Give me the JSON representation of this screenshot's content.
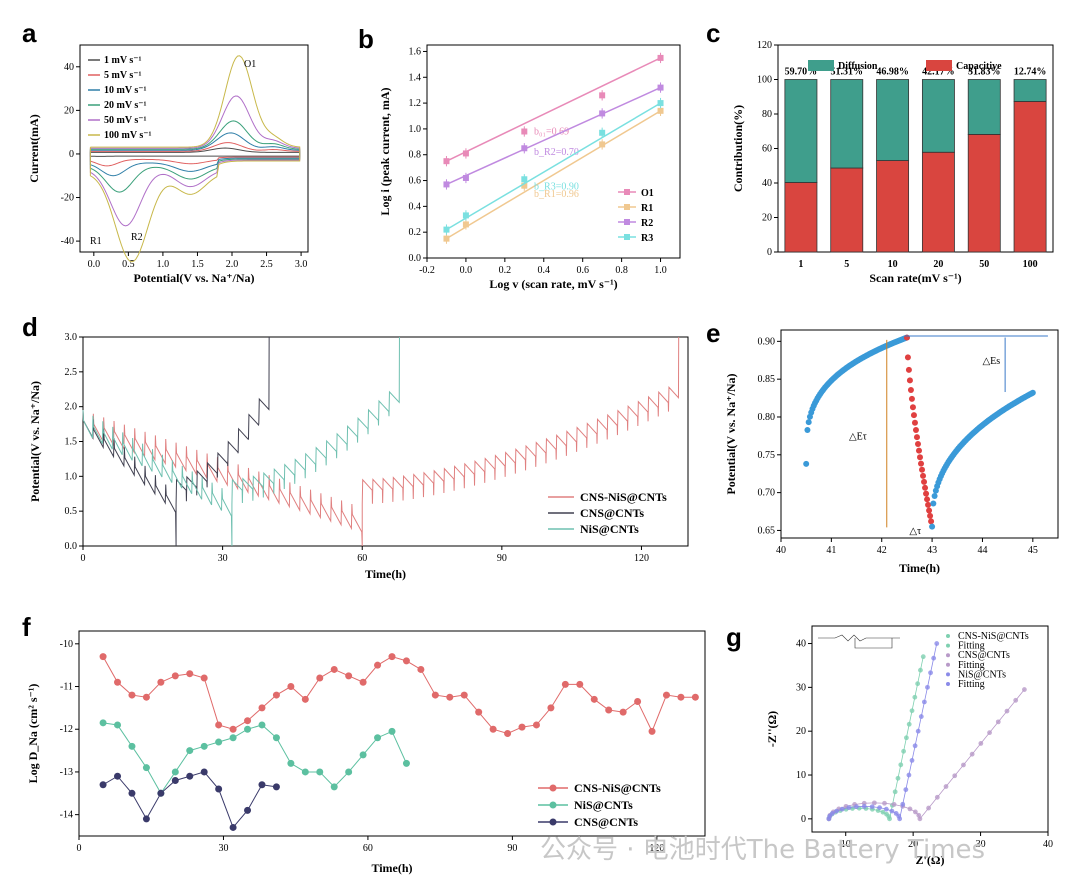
{
  "panels": {
    "a": "a",
    "b": "b",
    "c": "c",
    "d": "d",
    "e": "e",
    "f": "f",
    "g": "g"
  },
  "watermark": "公众号 · 电池时代The Battery Times",
  "chart_data": [
    {
      "panel": "a",
      "type": "line",
      "xlabel": "Potential(V vs. Na⁺/Na)",
      "ylabel": "Current(mA)",
      "xlim": [
        -0.2,
        3.1
      ],
      "ylim": [
        -45,
        50
      ],
      "xticks": [
        "0.0",
        "0.5",
        "1.0",
        "1.5",
        "2.0",
        "2.5",
        "3.0"
      ],
      "yticks": [
        "-40",
        "-20",
        "0",
        "20",
        "40"
      ],
      "annotations": [
        "O1",
        "R1",
        "R2"
      ],
      "series": [
        {
          "name": "1 mV s⁻¹",
          "color": "#4d4d4d",
          "peak_ox": 2.0,
          "peak_red": 0.1
        },
        {
          "name": "5 mV s⁻¹",
          "color": "#e06060",
          "peak_ox": 4.0,
          "peak_red": 3.0
        },
        {
          "name": "10 mV s⁻¹",
          "color": "#2f7fa8",
          "peak_ox": 8.0,
          "peak_red": 6.0
        },
        {
          "name": "20 mV s⁻¹",
          "color": "#3aa07a",
          "peak_ox": 13.0,
          "peak_red": 12.0
        },
        {
          "name": "50 mV s⁻¹",
          "color": "#b070c8",
          "peak_ox": 24.0,
          "peak_red": 26.0
        },
        {
          "name": "100 mV s⁻¹",
          "color": "#c8b84a",
          "peak_ox": 42.0,
          "peak_red": 41.0
        }
      ]
    },
    {
      "panel": "b",
      "type": "scatter",
      "xlabel": "Log v (scan rate, mV s⁻¹)",
      "ylabel": "Log i (peak current, mA)",
      "xlim": [
        -0.2,
        1.1
      ],
      "ylim": [
        0.0,
        1.65
      ],
      "xticks": [
        "-0.2",
        "0.0",
        "0.2",
        "0.4",
        "0.6",
        "0.8",
        "1.0"
      ],
      "yticks": [
        "0.0",
        "0.2",
        "0.4",
        "0.6",
        "0.8",
        "1.0",
        "1.2",
        "1.4",
        "1.6"
      ],
      "x": [
        -0.1,
        0.0,
        0.3,
        0.7,
        1.0
      ],
      "series": [
        {
          "name": "O1",
          "color": "#e88ab8",
          "values": [
            0.75,
            0.81,
            0.98,
            1.26,
            1.55
          ],
          "fit": "b₀₁=0.69"
        },
        {
          "name": "R1",
          "color": "#f0c890",
          "values": [
            0.15,
            0.26,
            0.56,
            0.88,
            1.14
          ],
          "fit": "b_R1=0.96"
        },
        {
          "name": "R2",
          "color": "#c08ae0",
          "values": [
            0.57,
            0.62,
            0.85,
            1.12,
            1.32
          ],
          "fit": "b_R2=0.70"
        },
        {
          "name": "R3",
          "color": "#7ae0e0",
          "values": [
            0.22,
            0.33,
            0.61,
            0.97,
            1.2
          ],
          "fit": "b_R3=0.90"
        }
      ]
    },
    {
      "panel": "c",
      "type": "bar",
      "xlabel": "Scan rate(mV s⁻¹)",
      "ylabel": "Contribution(%)",
      "ylim": [
        0,
        120
      ],
      "yticks": [
        "0",
        "20",
        "40",
        "60",
        "80",
        "100",
        "120"
      ],
      "categories": [
        "1",
        "5",
        "10",
        "20",
        "50",
        "100"
      ],
      "legend": [
        "Diffusion",
        "Capacitive"
      ],
      "colors": {
        "diffusion": "#3f9e8c",
        "capacitive": "#d9453f"
      },
      "capacitive": [
        40.3,
        48.69,
        53.02,
        57.83,
        68.17,
        87.26
      ],
      "diffusion_labels": [
        "59.70%",
        "51.31%",
        "46.98%",
        "42.17%",
        "31.83%",
        "12.74%"
      ]
    },
    {
      "panel": "d",
      "type": "line",
      "xlabel": "Time(h)",
      "ylabel": "Potential(V vs. Na⁺/Na)",
      "xlim": [
        0,
        130
      ],
      "ylim": [
        0,
        3.0
      ],
      "xticks": [
        "0",
        "30",
        "60",
        "90",
        "120"
      ],
      "yticks": [
        "0.0",
        "0.5",
        "1.0",
        "1.5",
        "2.0",
        "2.5",
        "3.0"
      ],
      "series": [
        {
          "name": "CNS-NiS@CNTs",
          "color": "#e08080",
          "discharge_end": 60,
          "charge_end": 128
        },
        {
          "name": "CNS@CNTs",
          "color": "#404050",
          "discharge_end": 20,
          "charge_end": 40
        },
        {
          "name": "NiS@CNTs",
          "color": "#6fc0b0",
          "discharge_end": 32,
          "charge_end": 68
        }
      ]
    },
    {
      "panel": "e",
      "type": "scatter",
      "xlabel": "Time(h)",
      "ylabel": "Potential(V vs. Na⁺/Na)",
      "xlim": [
        40,
        45.5
      ],
      "ylim": [
        0.64,
        0.915
      ],
      "xticks": [
        "40",
        "41",
        "42",
        "43",
        "44",
        "45"
      ],
      "yticks": [
        "0.65",
        "0.70",
        "0.75",
        "0.80",
        "0.85",
        "0.90"
      ],
      "annotations": [
        "△Eτ",
        "△Es",
        "△τ"
      ],
      "points": {
        "start": [
          40.5,
          0.738
        ],
        "pulse_end": [
          42.5,
          0.905
        ],
        "relax_min": [
          43.0,
          0.655
        ],
        "end": [
          45.0,
          0.832
        ]
      }
    },
    {
      "panel": "f",
      "type": "line",
      "xlabel": "Time(h)",
      "ylabel": "Log D_Na (cm² s⁻¹)",
      "xlim": [
        0,
        130
      ],
      "ylim": [
        -14.5,
        -9.7
      ],
      "xticks": [
        "0",
        "30",
        "60",
        "90",
        "120"
      ],
      "yticks": [
        "-10",
        "-11",
        "-12",
        "-13",
        "-14"
      ],
      "series": [
        {
          "name": "CNS-NiS@CNTs",
          "color": "#e06a6a",
          "x": [
            5,
            8,
            11,
            14,
            17,
            20,
            23,
            26,
            29,
            32,
            35,
            38,
            41,
            44,
            47,
            50,
            53,
            56,
            59,
            62,
            65,
            68,
            71,
            74,
            77,
            80,
            83,
            86,
            89,
            92,
            95,
            98,
            101,
            104,
            107,
            110,
            113,
            116,
            119,
            122,
            125,
            128
          ],
          "y": [
            -10.3,
            -10.9,
            -11.2,
            -11.25,
            -10.9,
            -10.75,
            -10.7,
            -10.8,
            -11.9,
            -12.0,
            -11.8,
            -11.5,
            -11.2,
            -11.0,
            -11.3,
            -10.8,
            -10.6,
            -10.75,
            -10.9,
            -10.5,
            -10.3,
            -10.4,
            -10.6,
            -11.2,
            -11.25,
            -11.2,
            -11.6,
            -12.0,
            -12.1,
            -11.95,
            -11.9,
            -11.5,
            -10.95,
            -10.95,
            -11.3,
            -11.55,
            -11.6,
            -11.35,
            -12.05,
            -11.2,
            -11.25,
            -11.25
          ]
        },
        {
          "name": "NiS@CNTs",
          "color": "#5cc0a0",
          "x": [
            5,
            8,
            11,
            14,
            17,
            20,
            23,
            26,
            29,
            32,
            35,
            38,
            41,
            44,
            47,
            50,
            53,
            56,
            59,
            62,
            65,
            68
          ],
          "y": [
            -11.85,
            -11.9,
            -12.4,
            -12.9,
            -13.5,
            -13.0,
            -12.5,
            -12.4,
            -12.3,
            -12.2,
            -12.0,
            -11.9,
            -12.2,
            -12.8,
            -13.0,
            -13.0,
            -13.35,
            -13.0,
            -12.6,
            -12.2,
            -12.05,
            -12.8
          ]
        },
        {
          "name": "CNS@CNTs",
          "color": "#3a3a6a",
          "x": [
            5,
            8,
            11,
            14,
            17,
            20,
            23,
            26,
            29,
            32,
            35,
            38,
            41
          ],
          "y": [
            -13.3,
            -13.1,
            -13.5,
            -14.1,
            -13.5,
            -13.2,
            -13.1,
            -13.0,
            -13.4,
            -14.3,
            -13.9,
            -13.3,
            -13.35
          ]
        }
      ]
    },
    {
      "panel": "g",
      "type": "scatter",
      "xlabel": "Z'(Ω)",
      "ylabel": "-Z''(Ω)",
      "xlim": [
        5,
        40
      ],
      "ylim": [
        -3,
        44
      ],
      "xticks": [
        "10",
        "20",
        "30",
        "40"
      ],
      "yticks": [
        "0",
        "10",
        "20",
        "30",
        "40"
      ],
      "legend_lines": [
        "CNS-NiS@CNTs",
        "Fitting",
        "CNS@CNTs",
        "Fitting",
        "NiS@CNTs",
        "Fitting"
      ],
      "series": [
        {
          "name": "CNS-NiS@CNTs",
          "color": "#7ed0b0",
          "arc_start": 7.5,
          "arc_end": 16.5,
          "tail_end": [
            21.5,
            37.0
          ]
        },
        {
          "name": "CNS@CNTs",
          "color": "#b89ac8",
          "arc_start": 7.5,
          "arc_end": 21.0,
          "tail_end": [
            36.5,
            29.5
          ]
        },
        {
          "name": "NiS@CNTs",
          "color": "#8a8ae8",
          "arc_start": 7.5,
          "arc_end": 18.0,
          "tail_end": [
            23.5,
            40.0
          ]
        }
      ]
    }
  ]
}
